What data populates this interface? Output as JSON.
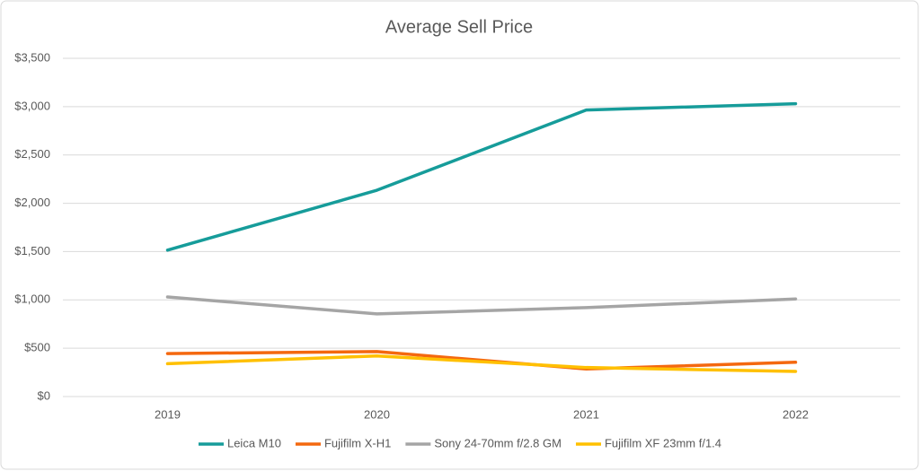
{
  "chart_data": {
    "type": "line",
    "title": "Average Sell Price",
    "categories": [
      "2019",
      "2020",
      "2021",
      "2022"
    ],
    "series": [
      {
        "name": "Leica M10",
        "color": "#169c9a",
        "values": [
          1515,
          2135,
          2965,
          3030
        ]
      },
      {
        "name": "Fujifilm X-H1",
        "color": "#f4680f",
        "values": [
          445,
          465,
          285,
          355
        ]
      },
      {
        "name": "Sony 24-70mm f/2.8 GM",
        "color": "#a5a5a5",
        "values": [
          1030,
          855,
          920,
          1010
        ]
      },
      {
        "name": "Fujifilm XF 23mm f/1.4",
        "color": "#ffc000",
        "values": [
          340,
          420,
          300,
          260
        ]
      }
    ],
    "ylim": [
      0,
      3500
    ],
    "yticks": [
      {
        "value": 0,
        "label": "$0"
      },
      {
        "value": 500,
        "label": "$500"
      },
      {
        "value": 1000,
        "label": "$1,000"
      },
      {
        "value": 1500,
        "label": "$1,500"
      },
      {
        "value": 2000,
        "label": "$2,000"
      },
      {
        "value": 2500,
        "label": "$2,500"
      },
      {
        "value": 3000,
        "label": "$3,000"
      },
      {
        "value": 3500,
        "label": "$3,500"
      }
    ],
    "grid": true,
    "legend": "bottom"
  }
}
